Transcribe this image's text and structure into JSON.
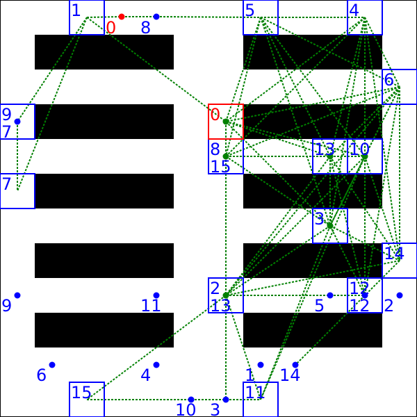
{
  "colors": {
    "background": "#ffffff",
    "obstacle": "#000000",
    "edge": "#008000",
    "landmark": "#0000ff",
    "start": "#ff0000"
  },
  "start": {
    "label": "0"
  },
  "landmarks": [
    {
      "id": "1"
    },
    {
      "id": "8"
    },
    {
      "id": "5"
    },
    {
      "id": "4"
    },
    {
      "id": "6"
    },
    {
      "id": "9"
    },
    {
      "id": "7"
    },
    {
      "id": "0"
    },
    {
      "id": "15"
    },
    {
      "id": "13"
    },
    {
      "id": "10"
    },
    {
      "id": "3"
    },
    {
      "id": "14"
    },
    {
      "id": "12"
    },
    {
      "id": "2"
    },
    {
      "id": "11"
    }
  ],
  "box_labels": [
    "1",
    "5",
    "4",
    "6",
    "9",
    "7",
    "7",
    "0",
    "8",
    "15",
    "13",
    "10",
    "3",
    "14",
    "2",
    "13",
    "12",
    "12",
    "11",
    "15"
  ],
  "point_labels": [
    "0",
    "8",
    "9",
    "11",
    "5",
    "2",
    "6",
    "4",
    "1",
    "14",
    "10",
    "3"
  ]
}
